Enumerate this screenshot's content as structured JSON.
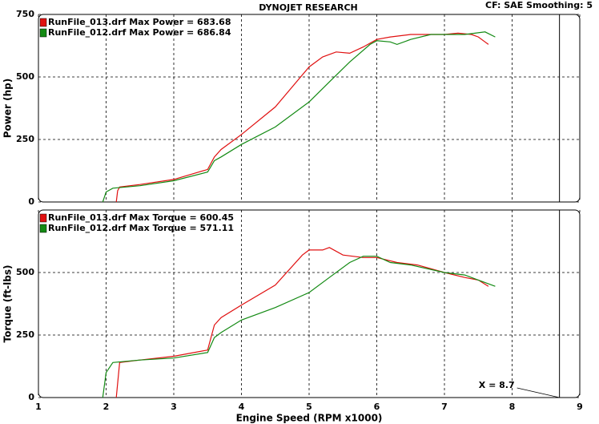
{
  "header": {
    "title": "DYNOJET RESEARCH",
    "info": "CF: SAE  Smoothing: 5"
  },
  "chart_data": [
    {
      "type": "line",
      "y_label": "Power (hp)",
      "xlim": [
        1,
        9
      ],
      "xticks": [
        1,
        2,
        3,
        4,
        5,
        6,
        7,
        8,
        9
      ],
      "ylim": [
        0,
        750
      ],
      "yticks": [
        0,
        250,
        500,
        750
      ],
      "grid": true,
      "legend": "upper left",
      "vline": 8.7,
      "series": [
        {
          "name": "RunFile_013.drf Max Power = 683.68",
          "color": "#e01010",
          "x": [
            2.15,
            2.17,
            2.2,
            2.5,
            3,
            3.5,
            3.6,
            3.7,
            4,
            4.5,
            5,
            5.2,
            5.4,
            5.6,
            5.8,
            6,
            6.2,
            6.5,
            7,
            7.2,
            7.4,
            7.5,
            7.6,
            7.65
          ],
          "values": [
            0,
            45,
            60,
            70,
            90,
            130,
            180,
            210,
            270,
            380,
            540,
            580,
            600,
            595,
            620,
            650,
            660,
            670,
            670,
            675,
            670,
            660,
            640,
            630
          ]
        },
        {
          "name": "RunFile_012.drf Max Power = 686.84",
          "color": "#138a13",
          "x": [
            1.95,
            2.0,
            2.1,
            2.5,
            3,
            3.5,
            3.6,
            3.7,
            4,
            4.5,
            5,
            5.3,
            5.6,
            5.9,
            6.0,
            6.2,
            6.3,
            6.5,
            6.8,
            7,
            7.3,
            7.6,
            7.75
          ],
          "values": [
            0,
            40,
            55,
            65,
            85,
            120,
            165,
            180,
            230,
            300,
            400,
            480,
            560,
            630,
            645,
            640,
            630,
            650,
            670,
            670,
            670,
            680,
            660
          ]
        }
      ]
    },
    {
      "type": "line",
      "y_label": "Torque (ft-lbs)",
      "x_label": "Engine Speed (RPM x1000)",
      "xlim": [
        1,
        9
      ],
      "xticks": [
        1,
        2,
        3,
        4,
        5,
        6,
        7,
        8,
        9
      ],
      "ylim": [
        0,
        750
      ],
      "yticks": [
        0,
        250,
        500
      ],
      "grid": true,
      "legend": "upper left",
      "vline": 8.7,
      "vline_label": "X = 8.7",
      "series": [
        {
          "name": "RunFile_013.drf Max Torque = 600.45",
          "color": "#e01010",
          "x": [
            2.15,
            2.2,
            2.5,
            3,
            3.5,
            3.6,
            3.7,
            4,
            4.5,
            4.9,
            5.0,
            5.2,
            5.3,
            5.5,
            5.8,
            6.0,
            6.3,
            6.6,
            7,
            7.3,
            7.5,
            7.65
          ],
          "values": [
            0,
            140,
            150,
            165,
            190,
            290,
            320,
            370,
            450,
            570,
            590,
            590,
            600,
            570,
            560,
            560,
            540,
            530,
            500,
            480,
            470,
            445
          ]
        },
        {
          "name": "RunFile_012.drf Max Torque = 571.11",
          "color": "#138a13",
          "x": [
            1.95,
            2.0,
            2.1,
            2.5,
            3,
            3.5,
            3.6,
            3.7,
            4,
            4.5,
            5,
            5.3,
            5.6,
            5.8,
            6.0,
            6.2,
            6.5,
            7,
            7.3,
            7.5,
            7.75
          ],
          "values": [
            0,
            100,
            140,
            150,
            158,
            180,
            240,
            260,
            310,
            360,
            420,
            480,
            540,
            565,
            565,
            540,
            530,
            500,
            490,
            470,
            445
          ]
        }
      ]
    }
  ]
}
